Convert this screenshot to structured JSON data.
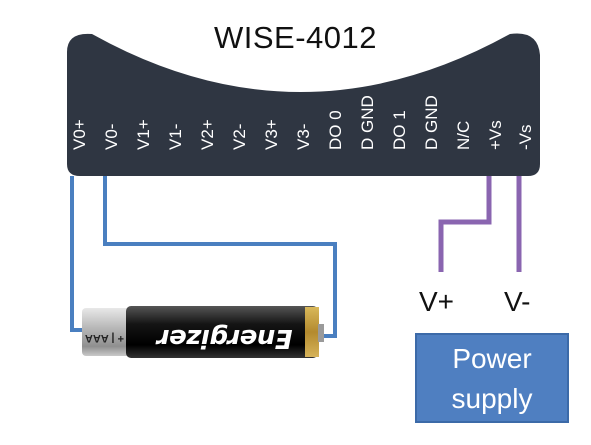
{
  "device": {
    "title": "WISE-4012",
    "body_color": "#2f3642",
    "pins": [
      "V0+",
      "V0-",
      "V1+",
      "V1-",
      "V2+",
      "V2-",
      "V3+",
      "V3-",
      "DO 0",
      "D GND",
      "DO 1",
      "D GND",
      "N/C",
      "+Vs",
      "-Vs"
    ]
  },
  "wiring": {
    "battery_wire_color": "#4a7fc0",
    "power_wire_color": "#8a65b0"
  },
  "battery": {
    "brand": "Energizer",
    "size_label": "+ | AAA"
  },
  "power_supply": {
    "line1": "Power",
    "line2": "supply",
    "v_plus": "V+",
    "v_minus": "V-",
    "fill_color": "#4f7fc1"
  }
}
